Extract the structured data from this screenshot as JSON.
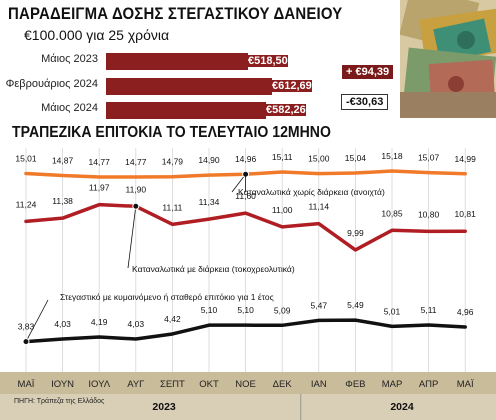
{
  "header": {
    "title": "ΠΑΡΑΔΕΙΓΜΑ ΔΟΣΗΣ ΣΤΕΓΑΣΤΙΚΟΥ ΔΑΝΕΙΟΥ",
    "subtitle": "€100.000 για 25 χρόνια"
  },
  "loan_example": {
    "rows": [
      {
        "label": "Μάιος 2023",
        "value": "€518,50",
        "amount": 518.5
      },
      {
        "label": "Φεβρουάριος 2024",
        "value": "€612,69",
        "amount": 612.69
      },
      {
        "label": "Μάιος 2024",
        "value": "€582,26",
        "amount": 582.26
      }
    ],
    "change_up": "+ €94,39",
    "change_down": "-€30,63",
    "bar_color": "#8b1e1e"
  },
  "section_title": "ΤΡΑΠΕΖΙΚΑ ΕΠΙΤΟΚΙΑ ΤΟ ΤΕΛΕΥΤΑΙΟ 12ΜΗΝΟ",
  "source": "ΠΗΓΗ: Τράπεζα της Ελλάδος",
  "chart_data": {
    "type": "line",
    "x": [
      "ΜΑΪ",
      "ΙΟΥΝ",
      "ΙΟΥΛ",
      "ΑΥΓ",
      "ΣΕΠΤ",
      "ΟΚΤ",
      "ΝΟΕ",
      "ΔΕΚ",
      "ΙΑΝ",
      "ΦΕΒ",
      "ΜΑΡ",
      "ΑΠΡ",
      "ΜΑΪ"
    ],
    "years": [
      {
        "label": "2023",
        "from": 0,
        "to": 7
      },
      {
        "label": "2024",
        "from": 8,
        "to": 12
      }
    ],
    "series": [
      {
        "name": "Καταναλωτικά χωρίς διάρκεια (ανοιχτά)",
        "color": "#f07a2a",
        "values": [
          15.01,
          14.87,
          14.77,
          14.77,
          14.79,
          14.9,
          14.96,
          15.11,
          15.0,
          15.04,
          15.18,
          15.07,
          14.99
        ],
        "labels": [
          "15,01",
          "14,87",
          "14,77",
          "14,77",
          "14,79",
          "14,90",
          "14,96",
          "15,11",
          "15,00",
          "15,04",
          "15,18",
          "15,07",
          "14,99"
        ],
        "marker_index": 6
      },
      {
        "name": "Καταναλωτικά με διάρκεια (τοκοχρεολυτικά)",
        "color": "#b01e24",
        "values": [
          11.24,
          11.38,
          11.97,
          11.9,
          11.11,
          11.34,
          11.6,
          11.0,
          11.14,
          9.99,
          10.85,
          10.8,
          10.81
        ],
        "labels": [
          "11,24",
          "11,38",
          "11,97",
          "11,90",
          "11,11",
          "11,34",
          "11,60",
          "11,00",
          "11,14",
          "9,99",
          "10,85",
          "10,80",
          "10,81"
        ],
        "marker_index": 3
      },
      {
        "name": "Στεγαστικό με κυμαινόμενο ή σταθερό επιτόκιο για 1 έτος",
        "color": "#111111",
        "values": [
          3.83,
          4.03,
          4.19,
          4.03,
          4.42,
          5.1,
          5.1,
          5.09,
          5.47,
          5.49,
          5.01,
          5.11,
          4.96
        ],
        "labels": [
          "3,83",
          "4,03",
          "4,19",
          "4,03",
          "4,42",
          "5,10",
          "5,10",
          "5,09",
          "5,47",
          "5,49",
          "5,01",
          "5,11",
          "4,96"
        ],
        "marker_index": 0
      }
    ]
  }
}
